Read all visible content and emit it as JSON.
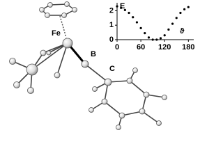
{
  "labels": [
    "Fe",
    "B",
    "C"
  ],
  "chart_data": {
    "type": "scatter",
    "x_label": "ϑ",
    "y_label": "E",
    "x": [
      0,
      10,
      20,
      30,
      40,
      50,
      60,
      70,
      80,
      90,
      100,
      110,
      120,
      130,
      140,
      150,
      160,
      170,
      180
    ],
    "values": [
      2.3,
      2.2,
      2.05,
      1.85,
      1.55,
      1.2,
      0.8,
      0.45,
      0.15,
      0.0,
      0.0,
      0.1,
      0.3,
      0.7,
      1.1,
      1.5,
      1.85,
      2.1,
      2.25
    ],
    "color": "#000000",
    "xlim": [
      0,
      190
    ],
    "ylim": [
      0,
      2.5
    ],
    "xticks": [
      0,
      60,
      120,
      180
    ],
    "yticks": [
      0,
      1,
      2
    ]
  }
}
